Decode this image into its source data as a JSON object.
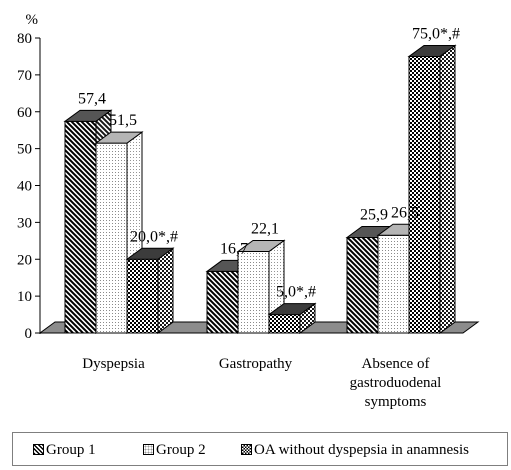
{
  "chart_data": {
    "type": "bar",
    "ylabel": "%",
    "ylim": [
      0,
      80
    ],
    "yticks": [
      "0",
      "10",
      "20",
      "30",
      "40",
      "50",
      "60",
      "70",
      "80"
    ],
    "categories": [
      [
        "Dyspepsia"
      ],
      [
        "Gastropathy"
      ],
      [
        "Absence of",
        "gastroduodenal",
        "symptoms"
      ]
    ],
    "series": [
      {
        "name": "Group 1",
        "values": [
          57.4,
          16.7,
          25.9
        ],
        "labels": [
          "57,4",
          "16,7",
          "25,9"
        ]
      },
      {
        "name": "Group 2",
        "values": [
          51.5,
          22.1,
          26.5
        ],
        "labels": [
          "51,5",
          "22,1",
          "26,5"
        ]
      },
      {
        "name": "OA without dyspepsia in anamnesis",
        "values": [
          20.0,
          5.0,
          75.0
        ],
        "labels": [
          "20,0*,#",
          "5,0*,#",
          "75,0*,#"
        ]
      }
    ],
    "legend_position": "bottom",
    "style": "3d-bar"
  }
}
